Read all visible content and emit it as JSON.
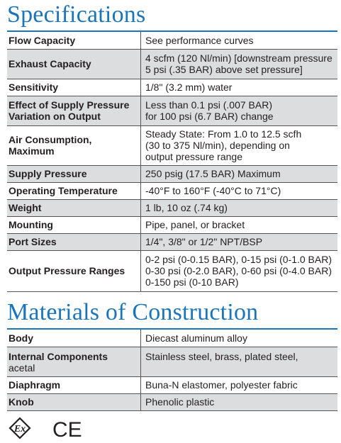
{
  "specifications": {
    "title": "Specifications",
    "rows": [
      {
        "label": "Flow Capacity",
        "lines": [
          "See performance curves"
        ]
      },
      {
        "label": "Exhaust Capacity",
        "lines": [
          "4 scfm (120 Nl/min) [downstream pressure",
          "5 psi (.35 BAR) above set pressure]"
        ]
      },
      {
        "label": "Sensitivity",
        "lines": [
          "1/8\" (3.2 mm) water"
        ]
      },
      {
        "label": "Effect of Supply Pressure Variation on Output",
        "label_lines": [
          "Effect of Supply Pressure",
          "Variation on Output"
        ],
        "lines": [
          "Less than 0.1 psi (.007 BAR)",
          "for 100 psi (6.7 BAR) change"
        ]
      },
      {
        "label": "Air Consumption, Maximum",
        "label_lines": [
          "Air Consumption,",
          "Maximum"
        ],
        "lines": [
          "Steady State: From 1.0 to 12.5 scfh",
          "(30 to 375 Nl/min), depending on",
          "output pressure range"
        ]
      },
      {
        "label": "Supply Pressure",
        "lines": [
          "250 psig (17.5 BAR) Maximum"
        ]
      },
      {
        "label": "Operating Temperature",
        "lines": [
          "-40°F to 160°F (-40°C to 71°C)"
        ]
      },
      {
        "label": "Weight",
        "lines": [
          "1 lb, 10 oz (.74 kg)"
        ]
      },
      {
        "label": "Mounting",
        "lines": [
          "Pipe, panel, or bracket"
        ]
      },
      {
        "label": "Port Sizes",
        "lines": [
          "1/4\", 3/8\" or 1/2\" NPT/BSP"
        ]
      },
      {
        "label": "Output Pressure Ranges",
        "lines": [
          "0-2 psi (0-0.15 BAR), 0-15 psi (0-1.0 BAR)",
          "0-30 psi (0-2.0 BAR), 0-60 psi (0-4.0 BAR)",
          "0-150 psi (0-10 BAR)"
        ]
      }
    ]
  },
  "materials": {
    "title": "Materials of Construction",
    "rows": [
      {
        "label": "Body",
        "value": "Diecast aluminum alloy"
      },
      {
        "label": "Internal Components",
        "label_sub": "acetal",
        "value": "Stainless steel, brass, plated steel,"
      },
      {
        "label": "Diaphragm",
        "value": "Buna-N elastomer, polyester fabric"
      },
      {
        "label": "Knob",
        "value": "Phenolic plastic"
      }
    ]
  },
  "certifications": {
    "ex_mark": "Ex",
    "ce_mark": "CE",
    "icons": [
      "atex-ex-icon",
      "ce-mark-icon"
    ]
  },
  "colors": {
    "heading": "#1b75bb",
    "rule": "#1b75bb",
    "shade": "#dcdddf"
  }
}
